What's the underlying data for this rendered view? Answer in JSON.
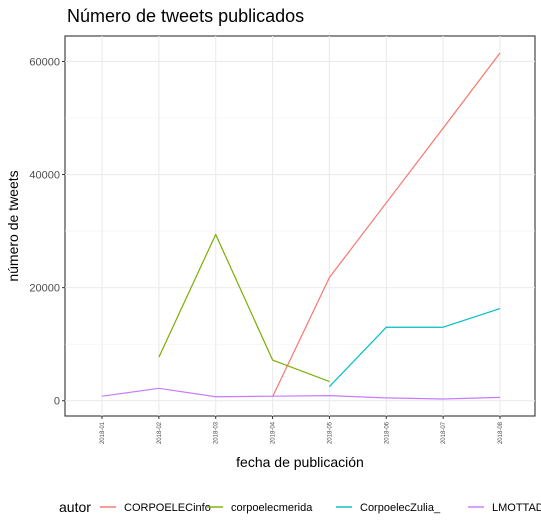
{
  "chart_data": {
    "type": "line",
    "title": "Número de tweets publicados",
    "xlabel": "fecha de publicación",
    "ylabel": "número de tweets",
    "categories": [
      "2018-01",
      "2018-02",
      "2018-03",
      "2018-04",
      "2018-05",
      "2018-06",
      "2018-07",
      "2018-08"
    ],
    "ylim": [
      -2700,
      64500
    ],
    "yticks": [
      0,
      20000,
      40000,
      60000
    ],
    "ytick_labels": [
      "0",
      "20000",
      "40000",
      "60000"
    ],
    "grid": true,
    "legend": {
      "title": "autor",
      "position": "bottom"
    },
    "series": [
      {
        "name": "CORPOELECinfo",
        "color": "#F8766D",
        "values": [
          null,
          null,
          null,
          700,
          21800,
          35000,
          48200,
          61500
        ]
      },
      {
        "name": "corpoelecmerida",
        "color": "#7CAE00",
        "values": [
          null,
          7700,
          29400,
          7200,
          3400,
          null,
          null,
          null
        ]
      },
      {
        "name": "CorpoelecZulia_",
        "color": "#00BFC4",
        "values": [
          null,
          null,
          null,
          null,
          2500,
          13000,
          13000,
          16300
        ]
      },
      {
        "name": "LMOTTAD",
        "color": "#C77CFF",
        "values": [
          800,
          2200,
          700,
          800,
          900,
          500,
          300,
          600
        ]
      }
    ]
  }
}
